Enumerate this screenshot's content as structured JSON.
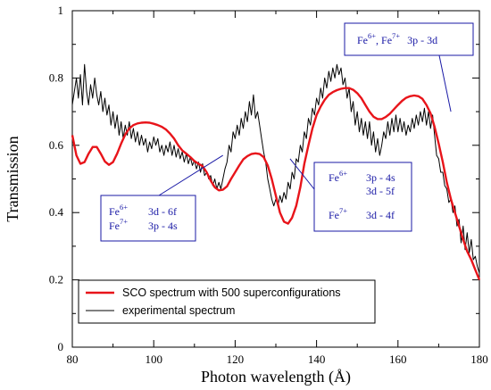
{
  "chart_data": {
    "type": "line",
    "xlabel": "Photon wavelength (Å)",
    "ylabel": "Transmission",
    "xlim": [
      80,
      180
    ],
    "ylim": [
      0,
      1
    ],
    "x_ticks": [
      "80",
      "100",
      "120",
      "140",
      "160",
      "180"
    ],
    "y_ticks": [
      "0",
      "0.2",
      "0.4",
      "0.6",
      "0.8",
      "1"
    ],
    "grid": false,
    "legend_position": "bottom-left",
    "series": [
      {
        "name": "SCO spectrum with 500 superconfigurations",
        "color": "#e8141a",
        "points": [
          [
            80,
            0.63
          ],
          [
            81,
            0.57
          ],
          [
            82,
            0.545
          ],
          [
            83,
            0.55
          ],
          [
            84,
            0.575
          ],
          [
            85,
            0.595
          ],
          [
            86,
            0.595
          ],
          [
            87,
            0.575
          ],
          [
            88,
            0.552
          ],
          [
            89,
            0.542
          ],
          [
            90,
            0.55
          ],
          [
            91,
            0.575
          ],
          [
            92,
            0.605
          ],
          [
            93,
            0.632
          ],
          [
            94,
            0.65
          ],
          [
            95,
            0.66
          ],
          [
            96,
            0.665
          ],
          [
            97,
            0.667
          ],
          [
            98,
            0.668
          ],
          [
            99,
            0.667
          ],
          [
            100,
            0.664
          ],
          [
            101,
            0.66
          ],
          [
            102,
            0.655
          ],
          [
            103,
            0.647
          ],
          [
            104,
            0.635
          ],
          [
            105,
            0.62
          ],
          [
            106,
            0.6
          ],
          [
            107,
            0.585
          ],
          [
            108,
            0.575
          ],
          [
            109,
            0.565
          ],
          [
            110,
            0.553
          ],
          [
            111,
            0.545
          ],
          [
            112,
            0.538
          ],
          [
            113,
            0.52
          ],
          [
            114,
            0.495
          ],
          [
            115,
            0.475
          ],
          [
            116,
            0.466
          ],
          [
            117,
            0.468
          ],
          [
            118,
            0.478
          ],
          [
            119,
            0.5
          ],
          [
            120,
            0.52
          ],
          [
            121,
            0.54
          ],
          [
            122,
            0.558
          ],
          [
            123,
            0.568
          ],
          [
            124,
            0.574
          ],
          [
            125,
            0.576
          ],
          [
            126,
            0.574
          ],
          [
            127,
            0.565
          ],
          [
            128,
            0.54
          ],
          [
            129,
            0.5
          ],
          [
            130,
            0.45
          ],
          [
            131,
            0.4
          ],
          [
            132,
            0.373
          ],
          [
            133,
            0.367
          ],
          [
            134,
            0.385
          ],
          [
            135,
            0.42
          ],
          [
            136,
            0.475
          ],
          [
            137,
            0.545
          ],
          [
            138,
            0.6
          ],
          [
            139,
            0.65
          ],
          [
            140,
            0.69
          ],
          [
            141,
            0.715
          ],
          [
            142,
            0.735
          ],
          [
            143,
            0.75
          ],
          [
            144,
            0.758
          ],
          [
            145,
            0.764
          ],
          [
            146,
            0.768
          ],
          [
            147,
            0.77
          ],
          [
            148,
            0.77
          ],
          [
            149,
            0.765
          ],
          [
            150,
            0.755
          ],
          [
            151,
            0.74
          ],
          [
            152,
            0.72
          ],
          [
            153,
            0.7
          ],
          [
            154,
            0.685
          ],
          [
            155,
            0.678
          ],
          [
            156,
            0.678
          ],
          [
            157,
            0.684
          ],
          [
            158,
            0.694
          ],
          [
            159,
            0.707
          ],
          [
            160,
            0.72
          ],
          [
            161,
            0.732
          ],
          [
            162,
            0.741
          ],
          [
            163,
            0.746
          ],
          [
            164,
            0.748
          ],
          [
            165,
            0.746
          ],
          [
            166,
            0.738
          ],
          [
            167,
            0.72
          ],
          [
            168,
            0.695
          ],
          [
            169,
            0.655
          ],
          [
            170,
            0.605
          ],
          [
            171,
            0.55
          ],
          [
            172,
            0.49
          ],
          [
            173,
            0.44
          ],
          [
            174,
            0.4
          ],
          [
            175,
            0.36
          ],
          [
            176,
            0.32
          ],
          [
            177,
            0.285
          ],
          [
            178,
            0.26
          ],
          [
            179,
            0.23
          ],
          [
            180,
            0.2
          ]
        ]
      },
      {
        "name": "experimental spectrum",
        "color": "#000000",
        "points": [
          [
            80,
            0.72
          ],
          [
            80.5,
            0.76
          ],
          [
            81,
            0.8
          ],
          [
            81.5,
            0.74
          ],
          [
            82,
            0.81
          ],
          [
            82.5,
            0.72
          ],
          [
            83,
            0.84
          ],
          [
            83.5,
            0.76
          ],
          [
            84,
            0.72
          ],
          [
            84.5,
            0.78
          ],
          [
            85,
            0.74
          ],
          [
            85.5,
            0.8
          ],
          [
            86,
            0.75
          ],
          [
            86.5,
            0.72
          ],
          [
            87,
            0.76
          ],
          [
            87.5,
            0.7
          ],
          [
            88,
            0.74
          ],
          [
            88.5,
            0.69
          ],
          [
            89,
            0.72
          ],
          [
            89.5,
            0.66
          ],
          [
            90,
            0.7
          ],
          [
            90.5,
            0.65
          ],
          [
            91,
            0.69
          ],
          [
            91.5,
            0.63
          ],
          [
            92,
            0.67
          ],
          [
            92.5,
            0.62
          ],
          [
            93,
            0.66
          ],
          [
            93.5,
            0.63
          ],
          [
            94,
            0.67
          ],
          [
            94.5,
            0.62
          ],
          [
            95,
            0.65
          ],
          [
            95.5,
            0.61
          ],
          [
            96,
            0.64
          ],
          [
            96.5,
            0.6
          ],
          [
            97,
            0.63
          ],
          [
            97.5,
            0.6
          ],
          [
            98,
            0.62
          ],
          [
            98.5,
            0.58
          ],
          [
            99,
            0.61
          ],
          [
            99.5,
            0.59
          ],
          [
            100,
            0.625
          ],
          [
            100.5,
            0.6
          ],
          [
            101,
            0.62
          ],
          [
            101.5,
            0.58
          ],
          [
            102,
            0.6
          ],
          [
            102.5,
            0.57
          ],
          [
            103,
            0.6
          ],
          [
            103.5,
            0.58
          ],
          [
            104,
            0.61
          ],
          [
            104.5,
            0.57
          ],
          [
            105,
            0.6
          ],
          [
            105.5,
            0.565
          ],
          [
            106,
            0.59
          ],
          [
            106.5,
            0.56
          ],
          [
            107,
            0.58
          ],
          [
            107.5,
            0.55
          ],
          [
            108,
            0.575
          ],
          [
            108.5,
            0.545
          ],
          [
            109,
            0.565
          ],
          [
            109.5,
            0.54
          ],
          [
            110,
            0.555
          ],
          [
            110.5,
            0.53
          ],
          [
            111,
            0.55
          ],
          [
            111.5,
            0.52
          ],
          [
            112,
            0.545
          ],
          [
            112.5,
            0.51
          ],
          [
            113,
            0.52
          ],
          [
            113.5,
            0.5
          ],
          [
            114,
            0.51
          ],
          [
            114.5,
            0.48
          ],
          [
            115,
            0.5
          ],
          [
            115.5,
            0.47
          ],
          [
            116,
            0.49
          ],
          [
            116.5,
            0.47
          ],
          [
            117,
            0.5
          ],
          [
            117.5,
            0.53
          ],
          [
            118,
            0.55
          ],
          [
            118.5,
            0.6
          ],
          [
            119,
            0.58
          ],
          [
            119.5,
            0.64
          ],
          [
            120,
            0.62
          ],
          [
            120.5,
            0.66
          ],
          [
            121,
            0.63
          ],
          [
            121.5,
            0.68
          ],
          [
            122,
            0.65
          ],
          [
            122.5,
            0.7
          ],
          [
            123,
            0.67
          ],
          [
            123.5,
            0.73
          ],
          [
            124,
            0.69
          ],
          [
            124.5,
            0.75
          ],
          [
            125,
            0.68
          ],
          [
            125.5,
            0.7
          ],
          [
            126,
            0.66
          ],
          [
            126.5,
            0.62
          ],
          [
            127,
            0.58
          ],
          [
            127.5,
            0.55
          ],
          [
            128,
            0.5
          ],
          [
            128.5,
            0.47
          ],
          [
            129,
            0.44
          ],
          [
            129.5,
            0.42
          ],
          [
            130,
            0.44
          ],
          [
            130.5,
            0.42
          ],
          [
            131,
            0.45
          ],
          [
            131.5,
            0.43
          ],
          [
            132,
            0.46
          ],
          [
            132.5,
            0.44
          ],
          [
            133,
            0.49
          ],
          [
            133.5,
            0.47
          ],
          [
            134,
            0.52
          ],
          [
            134.5,
            0.5
          ],
          [
            135,
            0.56
          ],
          [
            135.5,
            0.55
          ],
          [
            136,
            0.6
          ],
          [
            136.5,
            0.58
          ],
          [
            137,
            0.64
          ],
          [
            137.5,
            0.62
          ],
          [
            138,
            0.68
          ],
          [
            138.5,
            0.66
          ],
          [
            139,
            0.71
          ],
          [
            139.5,
            0.69
          ],
          [
            140,
            0.74
          ],
          [
            140.5,
            0.72
          ],
          [
            141,
            0.77
          ],
          [
            141.5,
            0.74
          ],
          [
            142,
            0.8
          ],
          [
            142.5,
            0.77
          ],
          [
            143,
            0.82
          ],
          [
            143.5,
            0.79
          ],
          [
            144,
            0.83
          ],
          [
            144.5,
            0.8
          ],
          [
            145,
            0.84
          ],
          [
            145.5,
            0.81
          ],
          [
            146,
            0.83
          ],
          [
            146.5,
            0.78
          ],
          [
            147,
            0.8
          ],
          [
            147.5,
            0.74
          ],
          [
            148,
            0.77
          ],
          [
            148.5,
            0.7
          ],
          [
            149,
            0.73
          ],
          [
            149.5,
            0.66
          ],
          [
            150,
            0.7
          ],
          [
            150.5,
            0.64
          ],
          [
            151,
            0.68
          ],
          [
            151.5,
            0.63
          ],
          [
            152,
            0.67
          ],
          [
            152.5,
            0.62
          ],
          [
            153,
            0.67
          ],
          [
            153.5,
            0.6
          ],
          [
            154,
            0.64
          ],
          [
            154.5,
            0.58
          ],
          [
            155,
            0.62
          ],
          [
            155.5,
            0.57
          ],
          [
            156,
            0.6
          ],
          [
            156.5,
            0.64
          ],
          [
            157,
            0.62
          ],
          [
            157.5,
            0.67
          ],
          [
            158,
            0.63
          ],
          [
            158.5,
            0.68
          ],
          [
            159,
            0.64
          ],
          [
            159.5,
            0.69
          ],
          [
            160,
            0.64
          ],
          [
            160.5,
            0.68
          ],
          [
            161,
            0.64
          ],
          [
            161.5,
            0.67
          ],
          [
            162,
            0.63
          ],
          [
            162.5,
            0.66
          ],
          [
            163,
            0.64
          ],
          [
            163.5,
            0.68
          ],
          [
            164,
            0.65
          ],
          [
            164.5,
            0.69
          ],
          [
            165,
            0.66
          ],
          [
            165.5,
            0.7
          ],
          [
            166,
            0.67
          ],
          [
            166.5,
            0.71
          ],
          [
            167,
            0.66
          ],
          [
            167.5,
            0.7
          ],
          [
            168,
            0.65
          ],
          [
            168.5,
            0.69
          ],
          [
            169,
            0.63
          ],
          [
            169.5,
            0.57
          ],
          [
            170,
            0.56
          ],
          [
            170.5,
            0.52
          ],
          [
            171,
            0.52
          ],
          [
            171.5,
            0.48
          ],
          [
            172,
            0.47
          ],
          [
            172.5,
            0.43
          ],
          [
            173,
            0.44
          ],
          [
            173.5,
            0.4
          ],
          [
            174,
            0.42
          ],
          [
            174.5,
            0.36
          ],
          [
            175,
            0.38
          ],
          [
            175.5,
            0.31
          ],
          [
            176,
            0.36
          ],
          [
            176.5,
            0.29
          ],
          [
            177,
            0.34
          ],
          [
            177.5,
            0.28
          ],
          [
            178,
            0.32
          ],
          [
            178.5,
            0.26
          ],
          [
            179,
            0.27
          ],
          [
            179.5,
            0.24
          ],
          [
            180,
            0.22
          ]
        ]
      }
    ],
    "annotations": [
      {
        "id": "fe-3d-6f",
        "lines": [
          {
            "ion": "Fe",
            "charge": "6+",
            "transition": "3d - 6f"
          },
          {
            "ion": "Fe",
            "charge": "7+",
            "transition": "3p - 4s"
          }
        ],
        "pointer_to": [
          117,
          0.57
        ]
      },
      {
        "id": "fe-3p-4s",
        "lines": [
          {
            "ion": "Fe",
            "charge": "6+",
            "transition": "3p - 4s"
          },
          {
            "ion": "",
            "charge": "",
            "transition": "3d - 5f"
          },
          {
            "ion": "Fe",
            "charge": "7+",
            "transition": "3d - 4f"
          }
        ],
        "pointer_to": [
          133.5,
          0.56
        ]
      },
      {
        "id": "fe-3p-3d",
        "lines": [
          {
            "ion": "Fe",
            "charge": "6+",
            "ion2": "Fe",
            "charge2": "7+",
            "transition": "3p - 3d"
          }
        ],
        "pointer_to": [
          173,
          0.7
        ]
      }
    ]
  }
}
